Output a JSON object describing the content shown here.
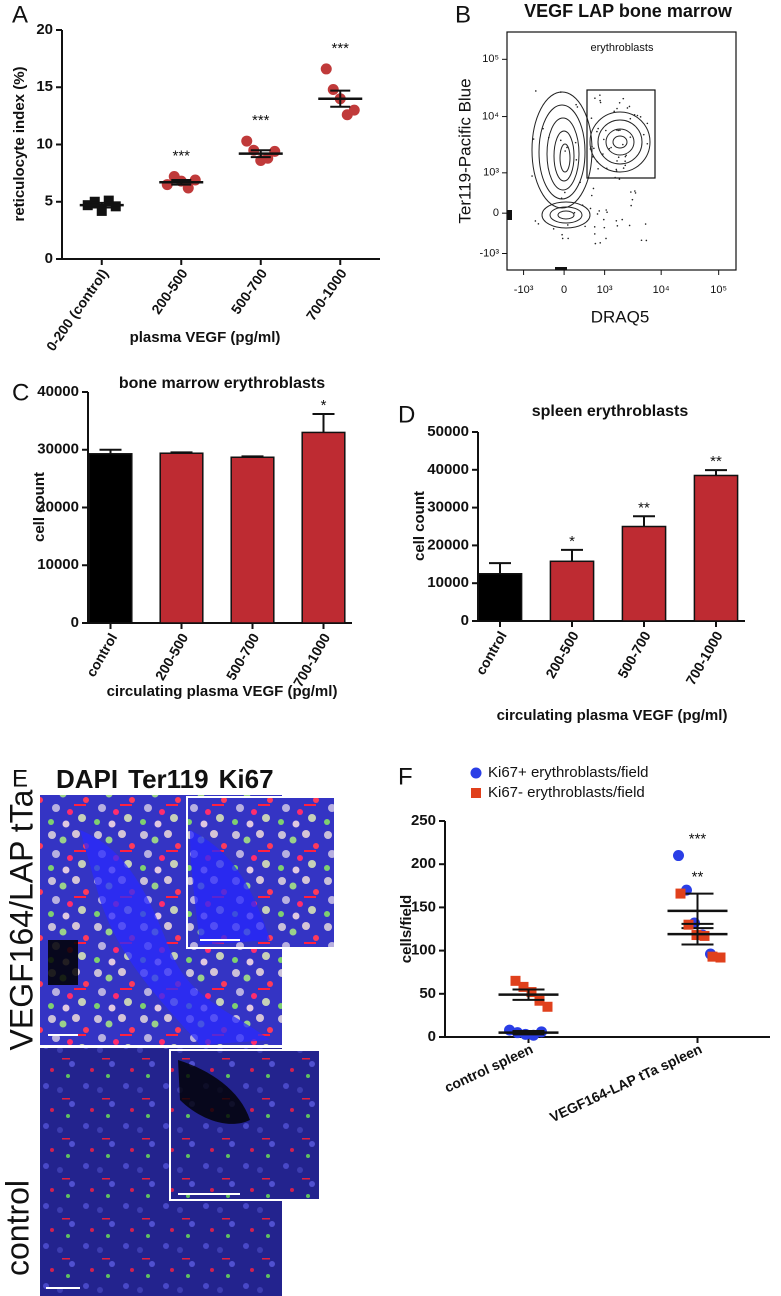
{
  "chart_data": [
    {
      "type": "dot",
      "panel": "A",
      "ylabel": "reticulocyte index (%)",
      "xlabel": "plasma VEGF (pg/ml)",
      "categories": [
        "0-200 (control)",
        "200-500",
        "500-700",
        "700-1000"
      ],
      "colors": [
        "#111111",
        "#c03a3a",
        "#c03a3a",
        "#c03a3a"
      ],
      "markers": [
        "square",
        "circle",
        "circle",
        "circle"
      ],
      "values": [
        [
          4.7,
          5.0,
          4.2,
          5.1,
          4.6
        ],
        [
          6.5,
          7.2,
          6.8,
          6.2,
          6.9
        ],
        [
          10.3,
          9.5,
          8.6,
          8.8,
          9.4
        ],
        [
          16.6,
          14.8,
          14.0,
          12.6,
          13.0
        ]
      ],
      "means": [
        4.7,
        6.7,
        9.2,
        14.0
      ],
      "sems": [
        0.2,
        0.2,
        0.3,
        0.7
      ],
      "annotations": [
        null,
        "***",
        "***",
        "***"
      ],
      "ylim": [
        0,
        20
      ],
      "yticks": [
        0,
        5,
        10,
        15,
        20
      ]
    },
    {
      "type": "contour",
      "panel": "B",
      "title": "VEGF LAP bone marrow",
      "gate_label": "erythroblasts",
      "xlabel": "DRAQ5",
      "ylabel": "Ter119-Pacific Blue",
      "scale": "biexponential",
      "xlim": [
        -2000,
        200000
      ],
      "ylim": [
        -2000,
        300000
      ],
      "xticks": [
        {
          "value": -1000,
          "label": "-10³"
        },
        0,
        {
          "value": 1000,
          "label": "10³"
        },
        {
          "value": 10000,
          "label": "10⁴"
        },
        {
          "value": 100000,
          "label": "10⁵"
        }
      ],
      "yticks": [
        {
          "value": -1000,
          "label": "-10³"
        },
        0,
        {
          "value": 1000,
          "label": "10³"
        },
        {
          "value": 10000,
          "label": "10⁴"
        },
        {
          "value": 100000,
          "label": "10⁵"
        }
      ]
    },
    {
      "type": "bar",
      "panel": "C",
      "title": "bone marrow erythroblasts",
      "ylabel": "cell count",
      "xlabel": "circulating plasma VEGF (pg/ml)",
      "categories": [
        "control",
        "200-500",
        "500-700",
        "700-1000"
      ],
      "values": [
        29300,
        29400,
        28700,
        33000
      ],
      "errors": [
        700,
        150,
        150,
        3200
      ],
      "colors": [
        "#000000",
        "#be2b32",
        "#be2b32",
        "#be2b32"
      ],
      "annotations": [
        null,
        null,
        null,
        "*"
      ],
      "ylim": [
        0,
        40000
      ],
      "yticks": [
        0,
        10000,
        20000,
        30000,
        40000
      ]
    },
    {
      "type": "bar",
      "panel": "D",
      "title": "spleen erythroblasts",
      "ylabel": "cell count",
      "xlabel": "circulating plasma VEGF (pg/ml)",
      "categories": [
        "control",
        "200-500",
        "500-700",
        "700-1000"
      ],
      "values": [
        12500,
        15800,
        25000,
        38500
      ],
      "errors": [
        2800,
        3000,
        2700,
        1400
      ],
      "colors": [
        "#000000",
        "#be2b32",
        "#be2b32",
        "#be2b32"
      ],
      "annotations": [
        null,
        "*",
        "**",
        "**"
      ],
      "ylim": [
        0,
        50000
      ],
      "yticks": [
        0,
        10000,
        20000,
        30000,
        40000,
        50000
      ]
    },
    {
      "type": "dot",
      "panel": "F",
      "ylabel": "cells/field",
      "legend": "top",
      "categories": [
        "control spleen",
        "VEGF164-LAP tTa spleen"
      ],
      "series": [
        {
          "name": "Ki67+ erythroblasts/field",
          "color": "#2a3ee6",
          "marker": "circle",
          "values": [
            [
              8,
              5,
              3,
              2,
              6
            ],
            [
              210,
              170,
              132,
              118,
              96
            ]
          ],
          "means": [
            5,
            146
          ],
          "sems": [
            2,
            20
          ],
          "annotations": [
            null,
            "***"
          ]
        },
        {
          "name": "Ki67- erythroblasts/field",
          "color": "#e0401c",
          "marker": "square",
          "values": [
            [
              65,
              58,
              52,
              42,
              35
            ],
            [
              166,
              130,
              118,
              117,
              93,
              92
            ]
          ],
          "means": [
            49,
            119
          ],
          "sems": [
            6,
            12
          ],
          "annotations": [
            null,
            "**"
          ]
        }
      ],
      "ylim": [
        0,
        250
      ],
      "yticks": [
        0,
        50,
        100,
        150,
        200,
        250
      ]
    }
  ],
  "figure_e": {
    "panel": "E",
    "stains": [
      {
        "name": "DAPI",
        "color": "#1f1fbf"
      },
      {
        "name": "Ter119",
        "color": "#d01e1e"
      },
      {
        "name": "Ki67",
        "color": "#a6d66e"
      }
    ],
    "rows": [
      "VEGF164/LAP tTa",
      "control"
    ]
  }
}
